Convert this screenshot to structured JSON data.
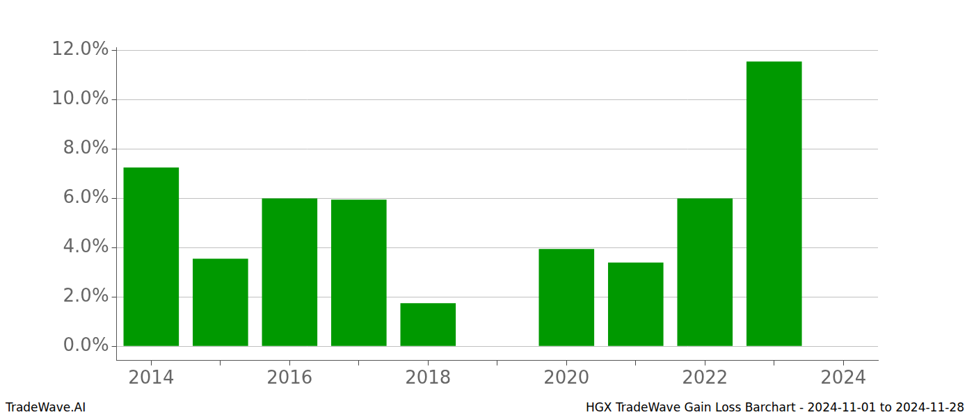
{
  "chart_data": {
    "type": "bar",
    "title": "HGX TradeWave Gain Loss Barchart - 2024-11-01 to 2024-11-28",
    "source": "TradeWave.AI",
    "categories": [
      "2014",
      null,
      "2016",
      null,
      "2018",
      null,
      "2020",
      null,
      "2022",
      null,
      "2024"
    ],
    "values": [
      7.25,
      3.55,
      6.0,
      5.95,
      1.75,
      null,
      3.95,
      3.4,
      6.0,
      11.55,
      null
    ],
    "color": "#009900",
    "ylim": [
      -0.58,
      12.13
    ],
    "yticks": [
      {
        "value": 0,
        "label": "0.0%"
      },
      {
        "value": 2,
        "label": "2.0%"
      },
      {
        "value": 4,
        "label": "4.0%"
      },
      {
        "value": 6,
        "label": "6.0%"
      },
      {
        "value": 8,
        "label": "8.0%"
      },
      {
        "value": 10,
        "label": "10.0%"
      },
      {
        "value": 12,
        "label": "12.0%"
      }
    ],
    "grid": true
  }
}
